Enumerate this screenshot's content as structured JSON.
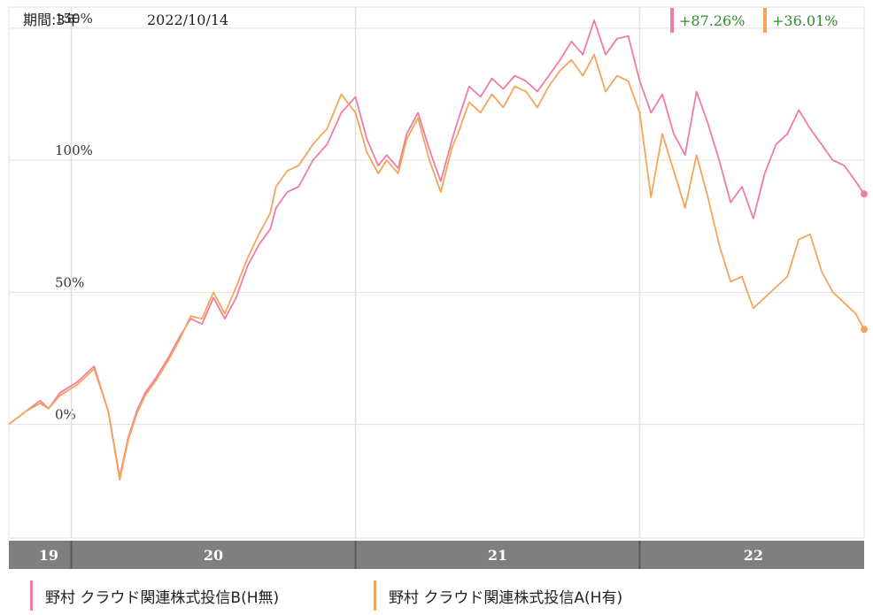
{
  "header": {
    "period_label": "期間:3年",
    "date": "2022/10/14",
    "badges": [
      {
        "text": "+87.26%",
        "color": "#f07ca6"
      },
      {
        "text": "+36.01%",
        "color": "#f5a55a"
      }
    ]
  },
  "colors": {
    "series_b": "#f07ca6",
    "series_a": "#f5a55a",
    "grid": "#e0e0e0",
    "axis_bar": "#7f7f7f",
    "badge_text": "#2e8b2e"
  },
  "chart_data": {
    "type": "line",
    "title": "",
    "xlabel": "",
    "ylabel": "",
    "ylim": [
      -43,
      158
    ],
    "y_ticks": [
      0,
      50,
      100,
      150
    ],
    "y_tick_labels": [
      "0%",
      "50%",
      "100%",
      "150%"
    ],
    "x_ticks": [
      {
        "x": 2019.92,
        "label": "19"
      },
      {
        "x": 2020.5,
        "label": "20"
      },
      {
        "x": 2021.5,
        "label": "21"
      },
      {
        "x": 2022.4,
        "label": "22"
      }
    ],
    "x_year_boundaries": [
      2020.0,
      2021.0,
      2022.0
    ],
    "xlim": [
      2019.78,
      2022.79
    ],
    "grid": true,
    "legend_position": "bottom",
    "series": [
      {
        "name": "野村 クラウド関連株式投信B(H無)",
        "color": "#f07ca6",
        "end_label": "+87.26%",
        "x": [
          2019.78,
          2019.84,
          2019.89,
          2019.92,
          2019.96,
          2020.02,
          2020.08,
          2020.13,
          2020.17,
          2020.2,
          2020.23,
          2020.26,
          2020.3,
          2020.34,
          2020.38,
          2020.42,
          2020.46,
          2020.5,
          2020.54,
          2020.58,
          2020.62,
          2020.66,
          2020.7,
          2020.72,
          2020.76,
          2020.8,
          2020.85,
          2020.9,
          2020.95,
          2021.0,
          2021.04,
          2021.08,
          2021.11,
          2021.15,
          2021.18,
          2021.22,
          2021.26,
          2021.3,
          2021.34,
          2021.36,
          2021.4,
          2021.44,
          2021.48,
          2021.52,
          2021.56,
          2021.6,
          2021.64,
          2021.68,
          2021.72,
          2021.76,
          2021.8,
          2021.84,
          2021.88,
          2021.92,
          2021.96,
          2022.0,
          2022.04,
          2022.08,
          2022.12,
          2022.16,
          2022.2,
          2022.24,
          2022.28,
          2022.32,
          2022.36,
          2022.4,
          2022.44,
          2022.48,
          2022.52,
          2022.56,
          2022.6,
          2022.64,
          2022.68,
          2022.72,
          2022.76,
          2022.79
        ],
        "y": [
          0,
          5,
          9,
          6,
          12,
          16,
          22,
          5,
          -20,
          -5,
          5,
          12,
          18,
          25,
          33,
          40,
          38,
          48,
          40,
          48,
          60,
          68,
          74,
          82,
          88,
          90,
          100,
          106,
          118,
          124,
          108,
          98,
          102,
          97,
          110,
          118,
          104,
          92,
          108,
          115,
          128,
          124,
          131,
          127,
          132,
          130,
          126,
          132,
          138,
          145,
          140,
          153,
          140,
          146,
          147,
          130,
          118,
          125,
          110,
          102,
          126,
          114,
          100,
          84,
          90,
          78,
          95,
          106,
          110,
          119,
          112,
          106,
          100,
          98,
          92,
          87.26
        ]
      },
      {
        "name": "野村 クラウド関連株式投信A(H有)",
        "color": "#f5a55a",
        "end_label": "+36.01%",
        "x": [
          2019.78,
          2019.84,
          2019.89,
          2019.92,
          2019.96,
          2020.02,
          2020.08,
          2020.13,
          2020.17,
          2020.2,
          2020.23,
          2020.26,
          2020.3,
          2020.34,
          2020.38,
          2020.42,
          2020.46,
          2020.5,
          2020.54,
          2020.58,
          2020.62,
          2020.66,
          2020.7,
          2020.72,
          2020.76,
          2020.8,
          2020.85,
          2020.9,
          2020.95,
          2021.0,
          2021.04,
          2021.08,
          2021.11,
          2021.15,
          2021.18,
          2021.22,
          2021.26,
          2021.3,
          2021.34,
          2021.36,
          2021.4,
          2021.44,
          2021.48,
          2021.52,
          2021.56,
          2021.6,
          2021.64,
          2021.68,
          2021.72,
          2021.76,
          2021.8,
          2021.84,
          2021.88,
          2021.92,
          2021.96,
          2022.0,
          2022.04,
          2022.08,
          2022.12,
          2022.16,
          2022.2,
          2022.24,
          2022.28,
          2022.32,
          2022.36,
          2022.4,
          2022.44,
          2022.48,
          2022.52,
          2022.56,
          2022.6,
          2022.64,
          2022.68,
          2022.72,
          2022.76,
          2022.79
        ],
        "y": [
          0,
          5,
          8,
          6,
          11,
          15,
          21,
          5,
          -21,
          -6,
          4,
          11,
          17,
          24,
          32,
          41,
          40,
          50,
          42,
          52,
          63,
          72,
          80,
          90,
          96,
          98,
          106,
          112,
          125,
          118,
          103,
          95,
          100,
          95,
          108,
          116,
          100,
          88,
          105,
          110,
          122,
          118,
          125,
          120,
          128,
          126,
          120,
          128,
          134,
          138,
          132,
          140,
          126,
          132,
          130,
          118,
          86,
          110,
          96,
          82,
          102,
          86,
          68,
          54,
          56,
          44,
          48,
          52,
          56,
          70,
          72,
          58,
          50,
          46,
          42,
          36.01
        ]
      }
    ]
  }
}
